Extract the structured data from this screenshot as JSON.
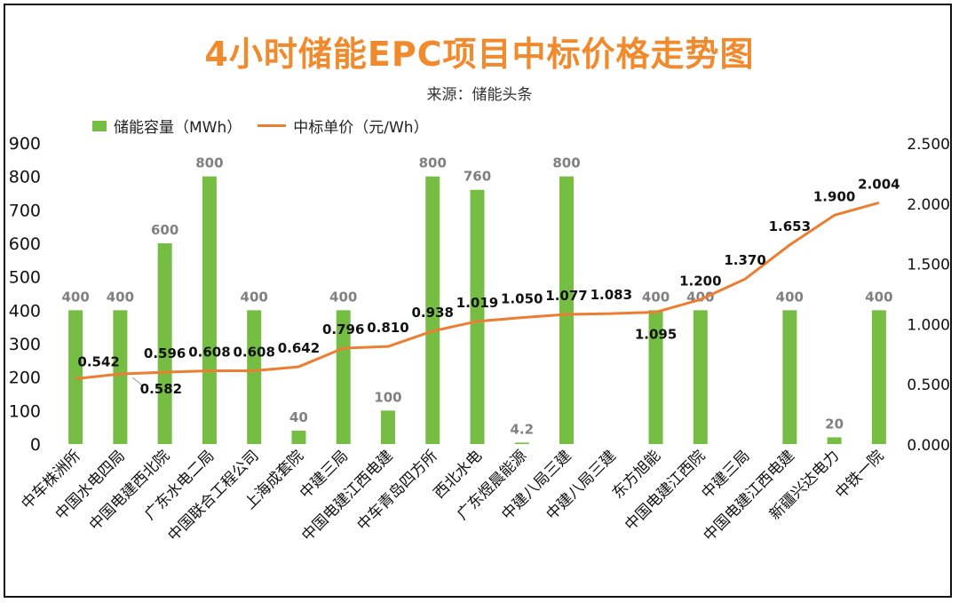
{
  "title": "4小时储能EPC项目中标价格走势图",
  "subtitle": "来源：储能头条",
  "colors": {
    "title": "#F08A2C",
    "bar": "#76BE43",
    "line": "#ED7D31",
    "bar_label": "#808080",
    "line_label": "#111111",
    "axis_text": "#111111"
  },
  "chart_data": {
    "type": "bar",
    "categories": [
      "中车株洲所",
      "中国水电四局",
      "中国电建西北院",
      "广东水电二局",
      "中国联合工程公司",
      "上海成套院",
      "中建三局",
      "中国电建江西电建",
      "中车青岛四方所",
      "西北水电",
      "广东煜晨能源",
      "中建八局三建",
      "中建八局三建",
      "东方旭能",
      "中国电建江西院",
      "中建三局",
      "中国电建江西电建",
      "新疆兴达电力",
      "中铁一院"
    ],
    "series": [
      {
        "name": "储能容量（MWh）",
        "type": "bar",
        "axis": "left",
        "values": [
          400,
          400,
          600,
          800,
          400,
          40,
          400,
          100,
          800,
          760,
          4.2,
          800,
          null,
          400,
          400,
          null,
          400,
          20,
          400
        ],
        "labels": [
          "400",
          "400",
          "600",
          "800",
          "400",
          "40",
          "400",
          "100",
          "800",
          "760",
          "4.2",
          "800",
          "",
          "400",
          "400",
          "",
          "400",
          "20",
          "400"
        ]
      },
      {
        "name": "中标单价（元/Wh）",
        "type": "line",
        "axis": "right",
        "values": [
          0.542,
          0.582,
          0.596,
          0.608,
          0.608,
          0.642,
          0.796,
          0.81,
          0.938,
          1.019,
          1.05,
          1.077,
          1.083,
          1.095,
          1.2,
          1.37,
          1.653,
          1.9,
          2.004
        ],
        "labels": [
          "0.542",
          "0.582",
          "0.596",
          "0.608",
          "0.608",
          "0.642",
          "0.796",
          "0.810",
          "0.938",
          "1.019",
          "1.050",
          "1.077",
          "1.083",
          "1.095",
          "1.200",
          "1.370",
          "1.653",
          "1.900",
          "2.004"
        ]
      }
    ],
    "y_left": {
      "ylim": [
        0,
        900
      ],
      "ticks": [
        "0",
        "100",
        "200",
        "300",
        "400",
        "500",
        "600",
        "700",
        "800",
        "900"
      ]
    },
    "y_right": {
      "ylim": [
        0,
        2.5
      ],
      "ticks": [
        "0.000",
        "0.500",
        "1.000",
        "1.500",
        "2.000",
        "2.500"
      ]
    },
    "grid": false,
    "legend_position": "top-left"
  }
}
